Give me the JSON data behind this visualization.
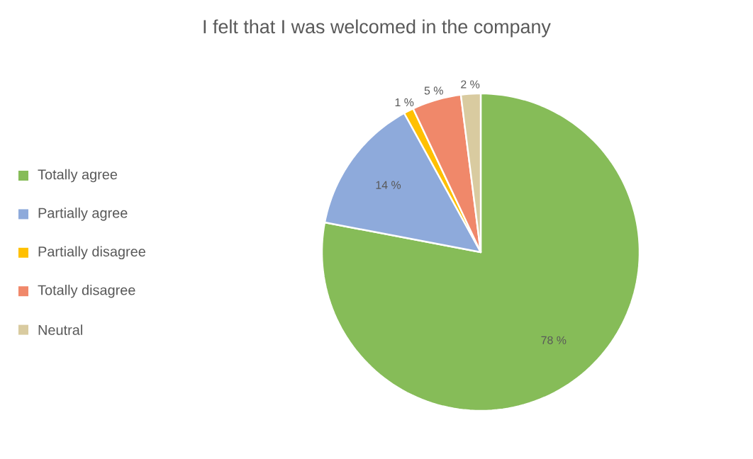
{
  "chart_data": {
    "type": "pie",
    "title": "I felt that I was welcomed in the company",
    "categories": [
      "Totally agree",
      "Partially agree",
      "Partially disagree",
      "Totally disagree",
      "Neutral"
    ],
    "values": [
      78,
      14,
      1,
      5,
      2
    ],
    "value_labels": [
      "78 %",
      "14 %",
      "1 %",
      "5 %",
      "2 %"
    ],
    "colors": [
      "#86bc58",
      "#8eaadb",
      "#ffc000",
      "#f0886a",
      "#d9cba0"
    ],
    "legend": "left"
  }
}
